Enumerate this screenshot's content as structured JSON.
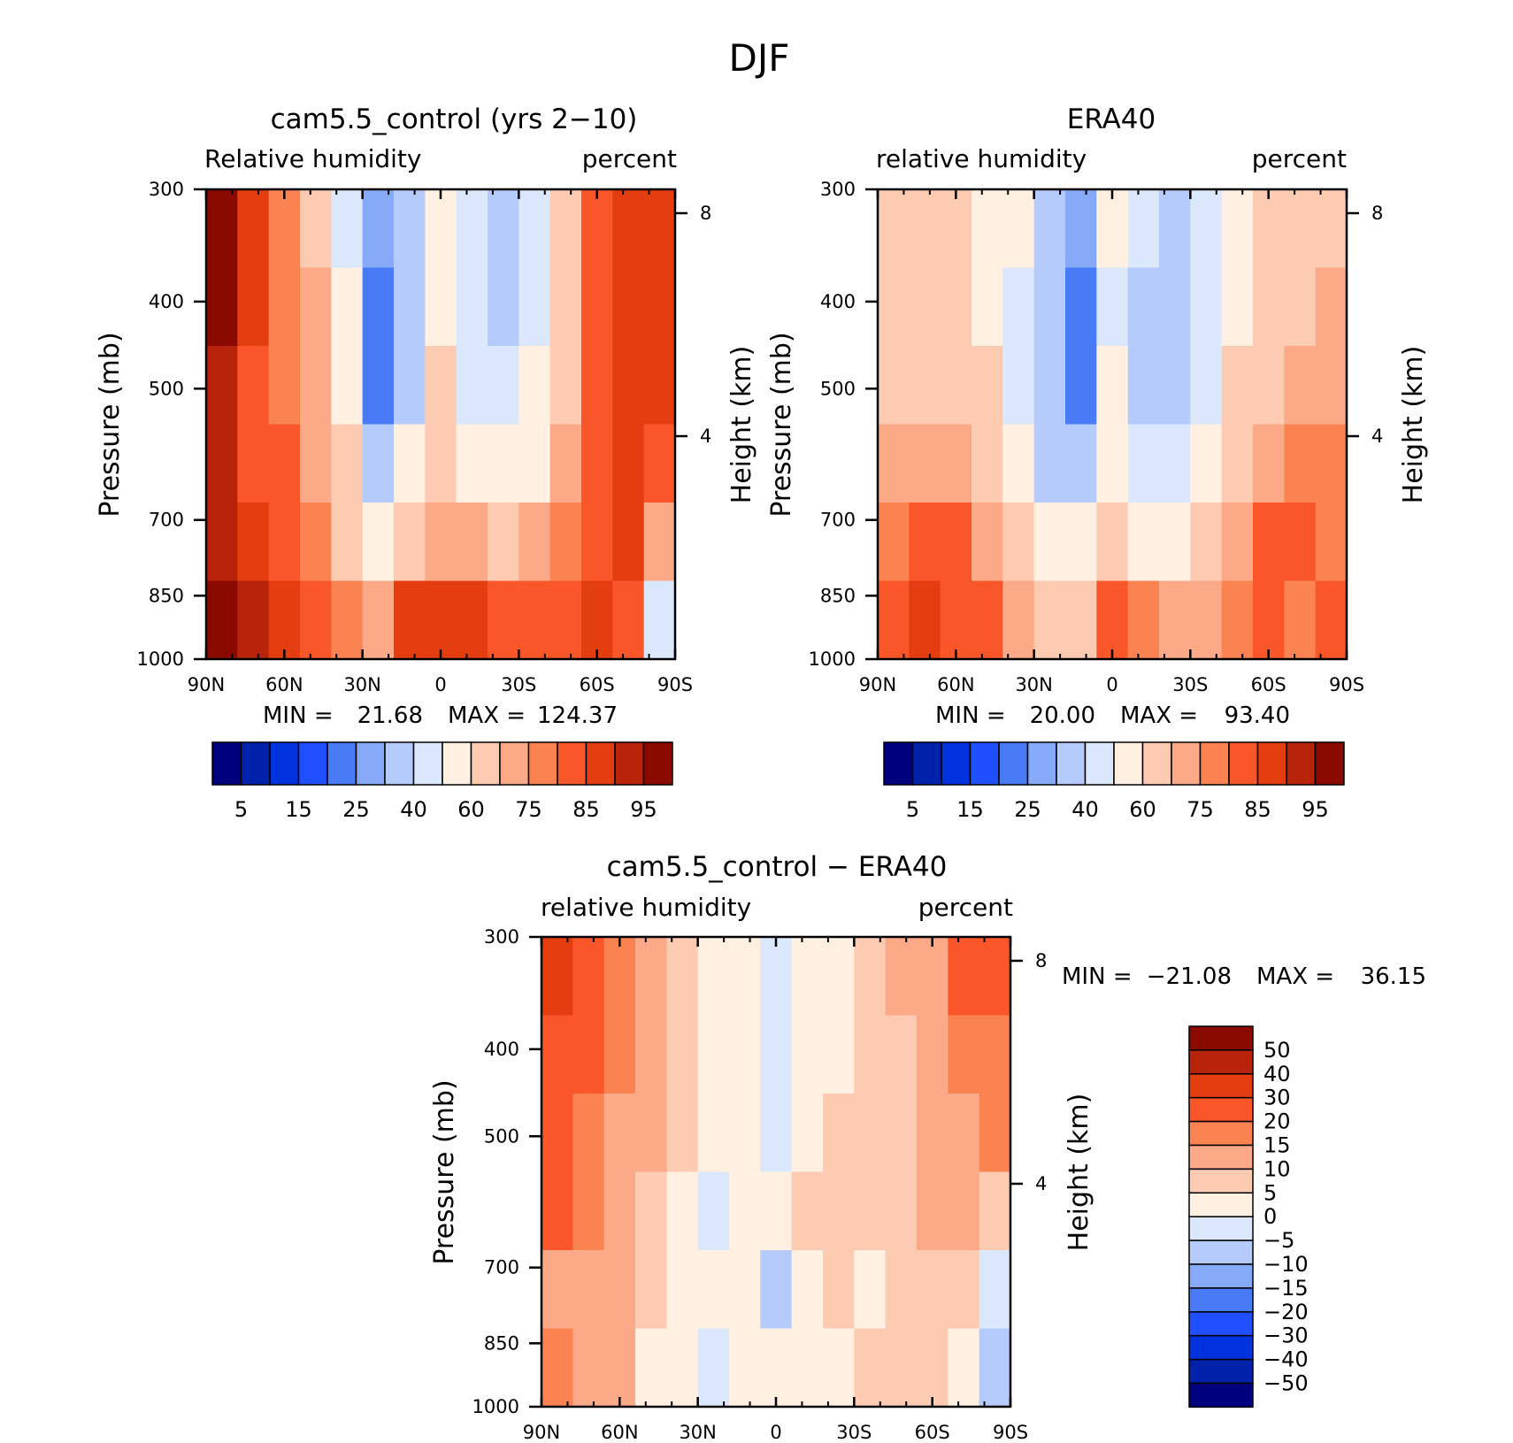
{
  "figure": {
    "title": "DJF"
  },
  "palettes": {
    "absolute": [
      "#00007f",
      "#0022aa",
      "#0033dd",
      "#1f4fff",
      "#4a7bf7",
      "#86aaf8",
      "#b4cbfb",
      "#dbe8fb",
      "#fff0e1",
      "#fdcbb2",
      "#fca987",
      "#fb8352",
      "#f9572a",
      "#e33d10",
      "#b8240a",
      "#8a0a00"
    ],
    "difference": [
      "#00007f",
      "#0022aa",
      "#0033dd",
      "#1f4fff",
      "#4a7bf7",
      "#86aaf8",
      "#b4cbfb",
      "#dbe8fb",
      "#fff0e1",
      "#fdcbb2",
      "#fca987",
      "#fb8352",
      "#f9572a",
      "#e33d10",
      "#b8240a",
      "#8a0a00"
    ]
  },
  "chart_data": [
    {
      "type": "heatmap",
      "title": "cam5.5_control (yrs 2−10)",
      "subtitle_left": "Relative humidity",
      "subtitle_right": "percent",
      "ylabel": "Pressure (mb)",
      "ylabel_right": "Height (km)",
      "x": [
        "90N",
        "60N",
        "30N",
        "0",
        "30S",
        "60S",
        "90S"
      ],
      "y": [
        300,
        400,
        500,
        700,
        850,
        1000
      ],
      "y_right_ticks": [
        8,
        4
      ],
      "min_label": "MIN =",
      "min_value": "21.68",
      "max_label": "MAX =",
      "max_value": "124.37",
      "colorbar_labels": [
        "5",
        "15",
        "25",
        "40",
        "60",
        "75",
        "85",
        "95"
      ],
      "values": [
        [
          96,
          85,
          79,
          68,
          48,
          28,
          38,
          54,
          42,
          38,
          48,
          66,
          80,
          85,
          88
        ],
        [
          95,
          85,
          79,
          70,
          50,
          22,
          34,
          56,
          40,
          36,
          46,
          66,
          80,
          86,
          88
        ],
        [
          94,
          84,
          79,
          71,
          54,
          24,
          38,
          60,
          44,
          40,
          50,
          68,
          80,
          86,
          88
        ],
        [
          93,
          84,
          80,
          74,
          60,
          38,
          52,
          68,
          58,
          50,
          58,
          72,
          82,
          87,
          84
        ],
        [
          92,
          85,
          82,
          78,
          68,
          58,
          66,
          74,
          70,
          64,
          70,
          76,
          84,
          88,
          70
        ],
        [
          97,
          90,
          86,
          80,
          76,
          74,
          86,
          88,
          86,
          82,
          80,
          84,
          86,
          82,
          40
        ]
      ]
    },
    {
      "type": "heatmap",
      "title": "ERA40",
      "subtitle_left": "relative humidity",
      "subtitle_right": "percent",
      "ylabel": "Pressure (mb)",
      "ylabel_right": "Height (km)",
      "x": [
        "90N",
        "60N",
        "30N",
        "0",
        "30S",
        "60S",
        "90S"
      ],
      "y": [
        300,
        400,
        500,
        700,
        850,
        1000
      ],
      "y_right_ticks": [
        8,
        4
      ],
      "min_label": "MIN =",
      "min_value": "20.00",
      "max_label": "MAX =",
      "max_value": "93.40",
      "colorbar_labels": [
        "5",
        "15",
        "25",
        "40",
        "60",
        "75",
        "85",
        "95"
      ],
      "values": [
        [
          62,
          62,
          62,
          58,
          52,
          34,
          26,
          52,
          40,
          38,
          46,
          58,
          62,
          62,
          62
        ],
        [
          62,
          62,
          62,
          58,
          48,
          30,
          22,
          48,
          38,
          34,
          44,
          58,
          62,
          66,
          70
        ],
        [
          63,
          63,
          63,
          60,
          48,
          30,
          24,
          52,
          38,
          34,
          46,
          60,
          66,
          72,
          74
        ],
        [
          72,
          72,
          70,
          64,
          54,
          38,
          34,
          56,
          44,
          42,
          52,
          64,
          74,
          78,
          78
        ],
        [
          78,
          80,
          80,
          74,
          64,
          52,
          50,
          64,
          58,
          56,
          62,
          72,
          82,
          84,
          76
        ],
        [
          84,
          86,
          84,
          80,
          74,
          66,
          64,
          80,
          78,
          74,
          70,
          78,
          84,
          78,
          80
        ]
      ]
    },
    {
      "type": "heatmap",
      "title": "cam5.5_control − ERA40",
      "subtitle_left": "relative humidity",
      "subtitle_right": "percent",
      "ylabel": "Pressure (mb)",
      "ylabel_right": "Height (km)",
      "x": [
        "90N",
        "60N",
        "30N",
        "0",
        "30S",
        "60S",
        "90S"
      ],
      "y": [
        300,
        400,
        500,
        700,
        850,
        1000
      ],
      "y_right_ticks": [
        8,
        4
      ],
      "min_label": "MIN =",
      "min_value": "−21.08",
      "max_label": "MAX =",
      "max_value": "36.15",
      "colorbar_labels": [
        "50",
        "40",
        "30",
        "20",
        "15",
        "10",
        "5",
        "0",
        "−5",
        "−10",
        "−15",
        "−20",
        "−30",
        "−40",
        "−50"
      ],
      "values": [
        [
          30,
          20,
          15,
          10,
          7,
          4,
          2,
          -2,
          2,
          4,
          8,
          10,
          12,
          20,
          20
        ],
        [
          28,
          20,
          15,
          10,
          6,
          3,
          2,
          -4,
          2,
          3,
          5,
          8,
          12,
          15,
          15
        ],
        [
          25,
          18,
          14,
          10,
          6,
          3,
          4,
          -2,
          4,
          5,
          6,
          8,
          12,
          14,
          16
        ],
        [
          20,
          16,
          12,
          8,
          4,
          -2,
          3,
          0,
          5,
          6,
          6,
          8,
          10,
          10,
          6
        ],
        [
          14,
          12,
          10,
          6,
          3,
          2,
          4,
          -6,
          4,
          5,
          4,
          6,
          8,
          6,
          -4
        ],
        [
          18,
          14,
          10,
          4,
          1,
          -3,
          2,
          4,
          3,
          4,
          5,
          8,
          6,
          4,
          -8
        ]
      ]
    }
  ]
}
